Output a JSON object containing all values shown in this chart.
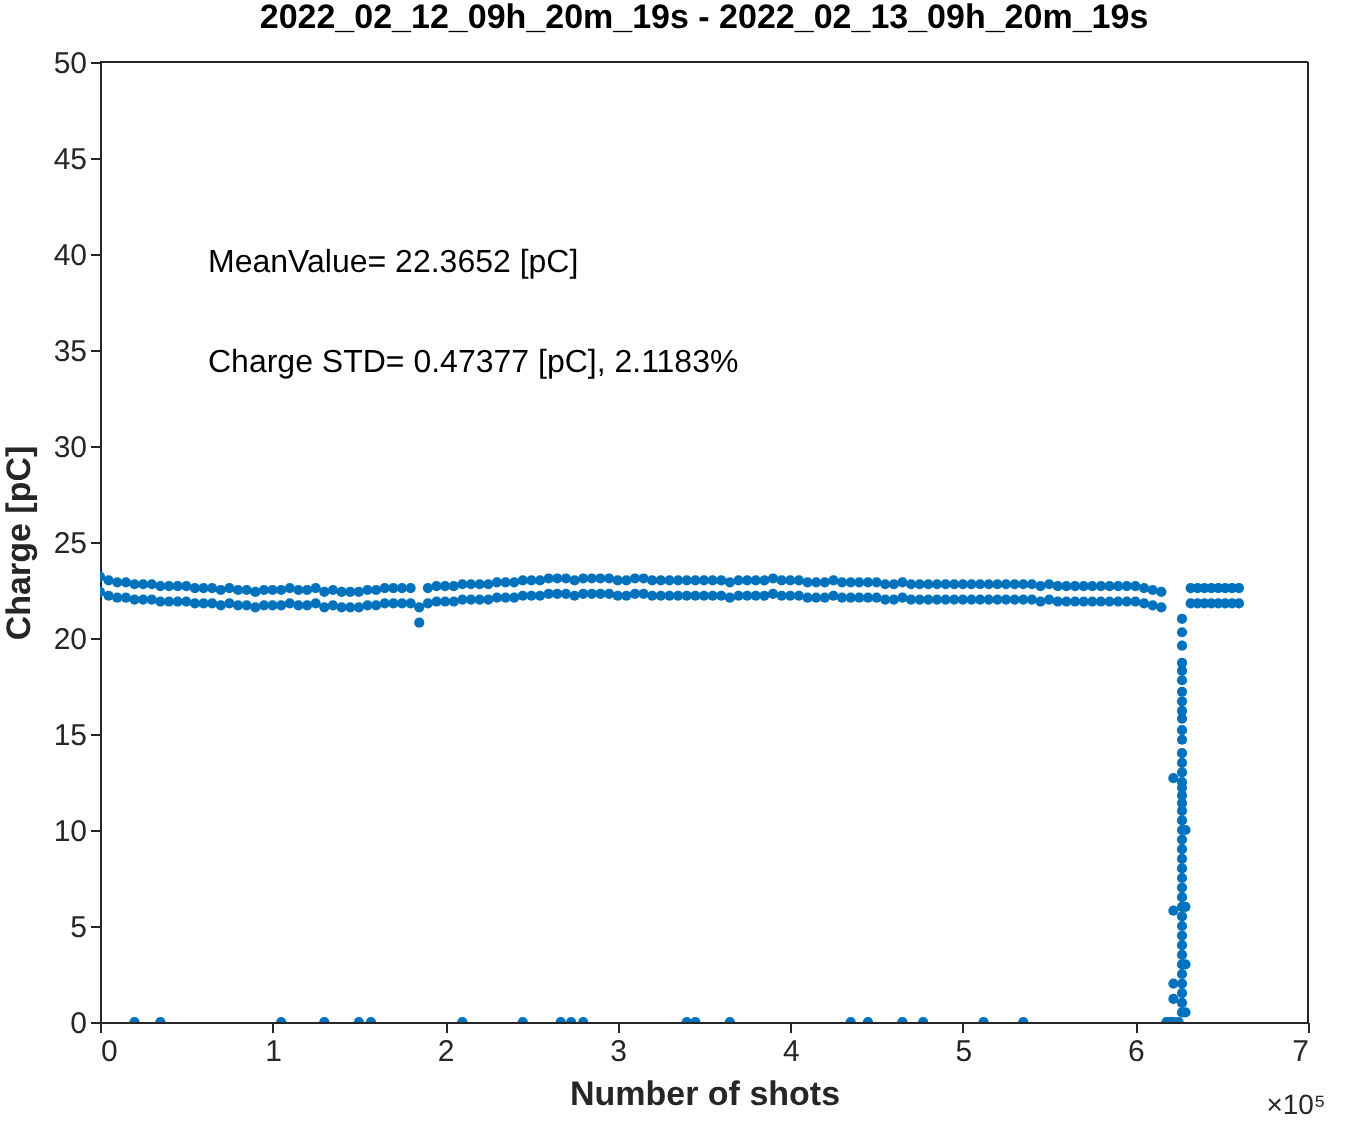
{
  "chart_data": {
    "type": "scatter",
    "title": "2022_02_12_09h_20m_19s - 2022_02_13_09h_20m_19s",
    "xlabel": "Number of shots",
    "ylabel": "Charge [pC]",
    "annotations": [
      "MeanValue= 22.3652 [pC]",
      "Charge STD= 0.47377 [pC], 2.1183%",
      "×10⁵"
    ],
    "xlim": [
      0,
      7
    ],
    "xticks": [
      0,
      1,
      2,
      3,
      4,
      5,
      6,
      7
    ],
    "ylim": [
      0,
      50
    ],
    "yticks": [
      0,
      5,
      10,
      15,
      20,
      25,
      30,
      35,
      40,
      45,
      50
    ],
    "grid": false,
    "marker": "circle",
    "series": [
      {
        "color": "#0072bd",
        "x": [
          0,
          0.05,
          0.1,
          0.15,
          0.2,
          0.25,
          0.3,
          0.35,
          0.4,
          0.45,
          0.5,
          0.55,
          0.6,
          0.65,
          0.7,
          0.75,
          0.8,
          0.85,
          0.9,
          0.95,
          1.0,
          1.05,
          1.1,
          1.15,
          1.2,
          1.25,
          1.3,
          1.35,
          1.4,
          1.45,
          1.5,
          1.55,
          1.6,
          1.65,
          1.7,
          1.75,
          1.8,
          1.85,
          1.9,
          1.95,
          2.0,
          2.05,
          2.1,
          2.15,
          2.2,
          2.25,
          2.3,
          2.35,
          2.4,
          2.45,
          2.5,
          2.55,
          2.6,
          2.65,
          2.7,
          2.75,
          2.8,
          2.85,
          2.9,
          2.95,
          3.0,
          3.05,
          3.1,
          3.15,
          3.2,
          3.25,
          3.3,
          3.35,
          3.4,
          3.45,
          3.5,
          3.55,
          3.6,
          3.65,
          3.7,
          3.75,
          3.8,
          3.85,
          3.9,
          3.95,
          4.0,
          4.05,
          4.1,
          4.15,
          4.2,
          4.25,
          4.3,
          4.35,
          4.4,
          4.45,
          4.5,
          4.55,
          4.6,
          4.65,
          4.7,
          4.75,
          4.8,
          4.85,
          4.9,
          4.95,
          5.0,
          5.05,
          5.1,
          5.15,
          5.2,
          5.25,
          5.3,
          5.35,
          5.4,
          5.45,
          5.5,
          5.55,
          5.6,
          5.65,
          5.7,
          5.75,
          5.8,
          5.85,
          5.9,
          5.95,
          6.0,
          6.05,
          6.1,
          6.15,
          6.32,
          6.36,
          6.4,
          6.44,
          6.48,
          6.52,
          6.56,
          6.6
        ],
        "values": [
          23.2,
          23.0,
          22.9,
          22.9,
          22.8,
          22.8,
          22.8,
          22.7,
          22.7,
          22.7,
          22.7,
          22.6,
          22.6,
          22.6,
          22.5,
          22.6,
          22.5,
          22.5,
          22.4,
          22.5,
          22.5,
          22.5,
          22.6,
          22.5,
          22.5,
          22.6,
          22.4,
          22.5,
          22.4,
          22.4,
          22.4,
          22.5,
          22.5,
          22.6,
          22.6,
          22.6,
          22.6,
          21.6,
          22.6,
          22.7,
          22.7,
          22.7,
          22.8,
          22.8,
          22.8,
          22.8,
          22.9,
          22.9,
          22.9,
          23.0,
          23.0,
          23.0,
          23.1,
          23.1,
          23.1,
          23.0,
          23.1,
          23.1,
          23.1,
          23.1,
          23.0,
          23.0,
          23.1,
          23.1,
          23.0,
          23.0,
          23.0,
          23.0,
          23.0,
          23.0,
          23.0,
          23.0,
          23.0,
          22.9,
          23.0,
          23.0,
          23.0,
          23.0,
          23.1,
          23.0,
          23.0,
          23.0,
          22.9,
          22.9,
          22.9,
          23.0,
          22.9,
          22.9,
          22.9,
          22.9,
          22.9,
          22.8,
          22.8,
          22.9,
          22.8,
          22.8,
          22.8,
          22.8,
          22.8,
          22.8,
          22.8,
          22.8,
          22.8,
          22.8,
          22.8,
          22.8,
          22.8,
          22.8,
          22.8,
          22.7,
          22.8,
          22.7,
          22.7,
          22.7,
          22.7,
          22.7,
          22.7,
          22.7,
          22.7,
          22.7,
          22.7,
          22.6,
          22.5,
          22.4,
          22.6,
          22.6,
          22.6,
          22.6,
          22.6,
          22.6,
          22.6,
          22.6
        ]
      },
      {
        "color": "#0072bd",
        "x": [
          0,
          0.05,
          0.1,
          0.15,
          0.2,
          0.25,
          0.3,
          0.35,
          0.4,
          0.45,
          0.5,
          0.55,
          0.6,
          0.65,
          0.7,
          0.75,
          0.8,
          0.85,
          0.9,
          0.95,
          1.0,
          1.05,
          1.1,
          1.15,
          1.2,
          1.25,
          1.3,
          1.35,
          1.4,
          1.45,
          1.5,
          1.55,
          1.6,
          1.65,
          1.7,
          1.75,
          1.8,
          1.85,
          1.9,
          1.95,
          2.0,
          2.05,
          2.1,
          2.15,
          2.2,
          2.25,
          2.3,
          2.35,
          2.4,
          2.45,
          2.5,
          2.55,
          2.6,
          2.65,
          2.7,
          2.75,
          2.8,
          2.85,
          2.9,
          2.95,
          3.0,
          3.05,
          3.1,
          3.15,
          3.2,
          3.25,
          3.3,
          3.35,
          3.4,
          3.45,
          3.5,
          3.55,
          3.6,
          3.65,
          3.7,
          3.75,
          3.8,
          3.85,
          3.9,
          3.95,
          4.0,
          4.05,
          4.1,
          4.15,
          4.2,
          4.25,
          4.3,
          4.35,
          4.4,
          4.45,
          4.5,
          4.55,
          4.6,
          4.65,
          4.7,
          4.75,
          4.8,
          4.85,
          4.9,
          4.95,
          5.0,
          5.05,
          5.1,
          5.15,
          5.2,
          5.25,
          5.3,
          5.35,
          5.4,
          5.45,
          5.5,
          5.55,
          5.6,
          5.65,
          5.7,
          5.75,
          5.8,
          5.85,
          5.9,
          5.95,
          6.0,
          6.05,
          6.1,
          6.15,
          6.32,
          6.36,
          6.4,
          6.44,
          6.48,
          6.52,
          6.56,
          6.6
        ],
        "values": [
          22.4,
          22.2,
          22.1,
          22.1,
          22.0,
          22.0,
          22.0,
          21.9,
          21.9,
          21.9,
          21.9,
          21.8,
          21.8,
          21.8,
          21.7,
          21.8,
          21.7,
          21.7,
          21.6,
          21.7,
          21.7,
          21.7,
          21.8,
          21.7,
          21.7,
          21.8,
          21.6,
          21.7,
          21.6,
          21.6,
          21.6,
          21.7,
          21.7,
          21.8,
          21.8,
          21.8,
          21.8,
          20.8,
          21.8,
          21.9,
          21.9,
          21.9,
          22.0,
          22.0,
          22.0,
          22.0,
          22.1,
          22.1,
          22.1,
          22.2,
          22.2,
          22.2,
          22.3,
          22.3,
          22.3,
          22.2,
          22.3,
          22.3,
          22.3,
          22.3,
          22.2,
          22.2,
          22.3,
          22.3,
          22.2,
          22.2,
          22.2,
          22.2,
          22.2,
          22.2,
          22.2,
          22.2,
          22.2,
          22.1,
          22.2,
          22.2,
          22.2,
          22.2,
          22.3,
          22.2,
          22.2,
          22.2,
          22.1,
          22.1,
          22.1,
          22.2,
          22.1,
          22.1,
          22.1,
          22.1,
          22.1,
          22.0,
          22.0,
          22.1,
          22.0,
          22.0,
          22.0,
          22.0,
          22.0,
          22.0,
          22.0,
          22.0,
          22.0,
          22.0,
          22.0,
          22.0,
          22.0,
          22.0,
          22.0,
          21.9,
          22.0,
          21.9,
          21.9,
          21.9,
          21.9,
          21.9,
          21.9,
          21.9,
          21.9,
          21.9,
          21.9,
          21.8,
          21.7,
          21.6,
          21.8,
          21.8,
          21.8,
          21.8,
          21.8,
          21.8,
          21.8,
          21.8
        ]
      },
      {
        "color": "#0072bd",
        "x": [
          0.2,
          0.35,
          1.05,
          1.3,
          1.5,
          1.57,
          2.1,
          2.45,
          2.67,
          2.73,
          2.8,
          3.4,
          3.45,
          3.65,
          4.35,
          4.45,
          4.65,
          4.77,
          5.12,
          5.35,
          6.18,
          6.2,
          6.22,
          6.25,
          6.22,
          6.22,
          6.22,
          6.22,
          6.27,
          6.27,
          6.27,
          6.27,
          6.27,
          6.27,
          6.27,
          6.27,
          6.27,
          6.27,
          6.27,
          6.27,
          6.27,
          6.27,
          6.27,
          6.27,
          6.27,
          6.27,
          6.27,
          6.27,
          6.27,
          6.27,
          6.27,
          6.27,
          6.27,
          6.27,
          6.27,
          6.27,
          6.27,
          6.27,
          6.27,
          6.27,
          6.27,
          6.27,
          6.27,
          6.27,
          6.27,
          6.27,
          6.27,
          6.27,
          6.27,
          6.29,
          6.29,
          6.29,
          6.29
        ],
        "values": [
          0,
          0,
          0,
          0,
          0,
          0,
          0,
          0,
          0,
          0,
          0,
          0,
          0,
          0,
          0,
          0,
          0,
          0,
          0,
          0,
          0,
          0,
          0,
          0,
          12.7,
          5.8,
          2.0,
          1.2,
          21.0,
          20.3,
          19.6,
          18.7,
          18.3,
          17.8,
          17.2,
          16.7,
          16.2,
          15.8,
          15.2,
          14.7,
          14.0,
          13.5,
          13.0,
          12.5,
          12.2,
          11.8,
          11.4,
          11.0,
          10.5,
          10.0,
          9.5,
          9.0,
          8.5,
          8.0,
          7.5,
          7.0,
          6.5,
          6.0,
          5.5,
          5.0,
          4.5,
          4.0,
          3.5,
          3.0,
          2.5,
          2.0,
          1.5,
          1.0,
          0.5,
          10.0,
          6.0,
          3.0,
          0.5
        ]
      }
    ]
  }
}
